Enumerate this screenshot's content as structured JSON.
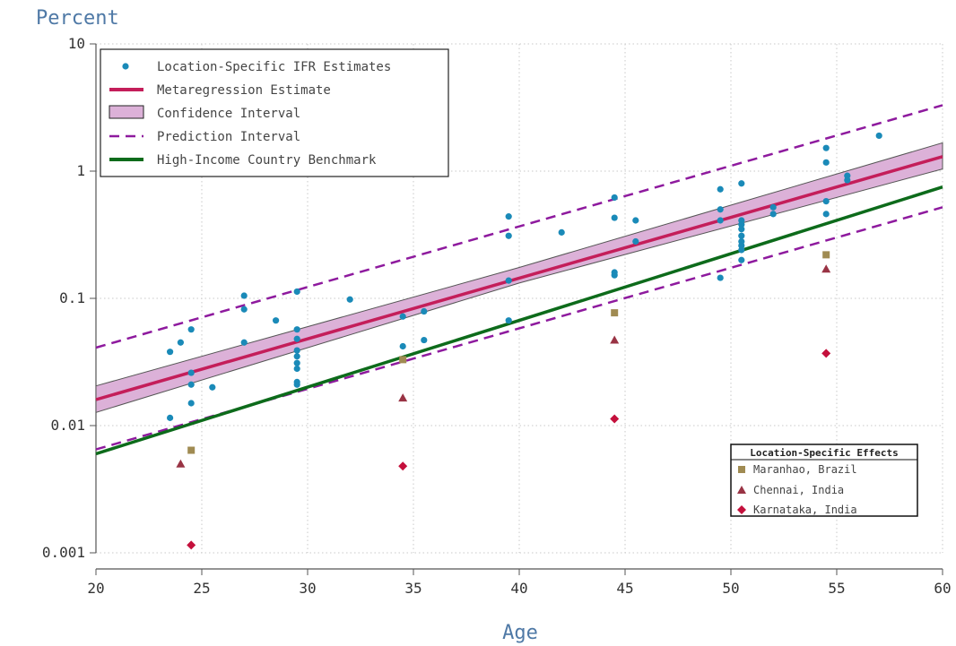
{
  "chart_data": {
    "type": "scatter",
    "xlabel": "Age",
    "ylabel": "Percent",
    "xlim": [
      20,
      60
    ],
    "ylim": [
      0.001,
      10
    ],
    "y_scale": "log",
    "x_ticks": [
      "20",
      "25",
      "30",
      "35",
      "40",
      "45",
      "50",
      "55",
      "60"
    ],
    "y_ticks": [
      "0.001",
      "0.01",
      "0.1",
      "1",
      "10"
    ],
    "grid": true,
    "colors": {
      "points": "#1a8ab8",
      "metaregression": "#c41e5a",
      "ci_fill": "#dcb1d8",
      "ci_edge": "#555555",
      "prediction": "#8e1a9e",
      "benchmark": "#0d6b1b",
      "maranhao": "#a08b52",
      "chennai": "#993344",
      "karnataka": "#c4103c"
    },
    "legend": {
      "placement": "top-left",
      "entries": [
        "Location-Specific IFR Estimates",
        "Metaregression Estimate",
        "Confidence Interval",
        "Prediction Interval",
        "High-Income Country Benchmark"
      ]
    },
    "location_legend": {
      "placement": "bottom-right",
      "title": "Location-Specific Effects",
      "entries": [
        "Maranhao, Brazil",
        "Chennai, India",
        "Karnataka, India"
      ]
    },
    "series": [
      {
        "name": "Location-Specific IFR Estimates",
        "kind": "points",
        "points": [
          [
            23.5,
            0.038
          ],
          [
            23.5,
            0.0115
          ],
          [
            24.0,
            0.045
          ],
          [
            24.5,
            0.057
          ],
          [
            24.5,
            0.026
          ],
          [
            24.5,
            0.021
          ],
          [
            24.5,
            0.015
          ],
          [
            25.5,
            0.02
          ],
          [
            27.0,
            0.105
          ],
          [
            27.0,
            0.082
          ],
          [
            27.0,
            0.045
          ],
          [
            28.5,
            0.067
          ],
          [
            29.5,
            0.113
          ],
          [
            29.5,
            0.057
          ],
          [
            29.5,
            0.048
          ],
          [
            29.5,
            0.039
          ],
          [
            29.5,
            0.035
          ],
          [
            29.5,
            0.031
          ],
          [
            29.5,
            0.028
          ],
          [
            29.5,
            0.022
          ],
          [
            29.5,
            0.021
          ],
          [
            32.0,
            0.098
          ],
          [
            34.5,
            0.072
          ],
          [
            34.5,
            0.042
          ],
          [
            35.5,
            0.079
          ],
          [
            35.5,
            0.047
          ],
          [
            39.5,
            0.44
          ],
          [
            39.5,
            0.31
          ],
          [
            39.5,
            0.138
          ],
          [
            39.5,
            0.067
          ],
          [
            42.0,
            0.33
          ],
          [
            44.5,
            0.62
          ],
          [
            44.5,
            0.43
          ],
          [
            44.5,
            0.16
          ],
          [
            44.5,
            0.152
          ],
          [
            45.5,
            0.41
          ],
          [
            45.5,
            0.28
          ],
          [
            49.5,
            0.72
          ],
          [
            49.5,
            0.5
          ],
          [
            49.5,
            0.41
          ],
          [
            49.5,
            0.145
          ],
          [
            50.5,
            0.8
          ],
          [
            50.5,
            0.41
          ],
          [
            50.5,
            0.38
          ],
          [
            50.5,
            0.35
          ],
          [
            50.5,
            0.31
          ],
          [
            50.5,
            0.28
          ],
          [
            50.5,
            0.26
          ],
          [
            50.5,
            0.24
          ],
          [
            50.5,
            0.2
          ],
          [
            52.0,
            0.52
          ],
          [
            52.0,
            0.46
          ],
          [
            54.5,
            1.52
          ],
          [
            54.5,
            1.17
          ],
          [
            54.5,
            0.58
          ],
          [
            54.5,
            0.46
          ],
          [
            55.5,
            0.92
          ],
          [
            55.5,
            0.85
          ],
          [
            57.0,
            1.9
          ]
        ]
      },
      {
        "name": "Metaregression Estimate",
        "kind": "line",
        "points": [
          [
            20,
            0.016
          ],
          [
            60,
            1.3
          ]
        ]
      },
      {
        "name": "Confidence Interval",
        "kind": "band",
        "lower": [
          [
            20,
            0.0127
          ],
          [
            40,
            0.132
          ],
          [
            60,
            1.04
          ]
        ],
        "upper": [
          [
            20,
            0.0205
          ],
          [
            40,
            0.175
          ],
          [
            60,
            1.67
          ]
        ]
      },
      {
        "name": "Prediction Interval",
        "kind": "dashed-band",
        "lower": [
          [
            20,
            0.0065
          ],
          [
            60,
            0.52
          ]
        ],
        "upper": [
          [
            20,
            0.041
          ],
          [
            60,
            3.3
          ]
        ]
      },
      {
        "name": "High-Income Country Benchmark",
        "kind": "line",
        "points": [
          [
            20,
            0.006
          ],
          [
            60,
            0.75
          ]
        ]
      },
      {
        "name": "Maranhao, Brazil",
        "kind": "square",
        "points": [
          [
            24.5,
            0.0064
          ],
          [
            34.5,
            0.033
          ],
          [
            44.5,
            0.077
          ],
          [
            54.5,
            0.22
          ]
        ]
      },
      {
        "name": "Chennai, India",
        "kind": "triangle",
        "points": [
          [
            24.0,
            0.005
          ],
          [
            34.5,
            0.0165
          ],
          [
            44.5,
            0.047
          ],
          [
            54.5,
            0.17
          ]
        ]
      },
      {
        "name": "Karnataka, India",
        "kind": "diamond",
        "points": [
          [
            24.5,
            0.00115
          ],
          [
            34.5,
            0.0048
          ],
          [
            44.5,
            0.0113
          ],
          [
            54.5,
            0.037
          ]
        ]
      }
    ]
  }
}
